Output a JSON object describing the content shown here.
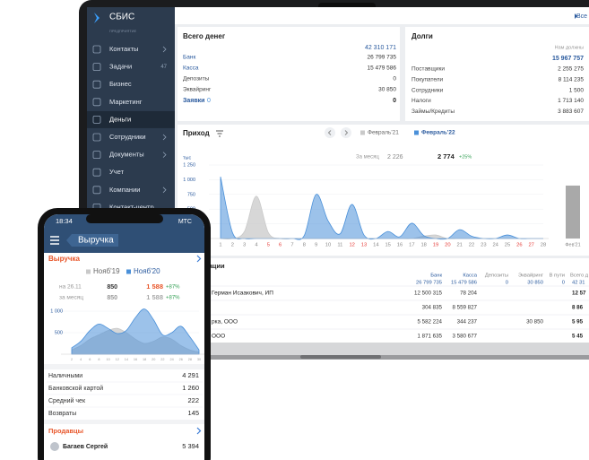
{
  "laptop": {
    "brand": "СБИС",
    "edition": "ПРЕДПРИЯТИЕ",
    "top_link": "Все",
    "menu": [
      {
        "label": "Контакты",
        "arrow": true
      },
      {
        "label": "Задачи",
        "count": "47"
      },
      {
        "label": "Бизнес"
      },
      {
        "label": "Маркетинг"
      },
      {
        "label": "Деньги",
        "active": true
      },
      {
        "label": "Сотрудники",
        "arrow": true
      },
      {
        "label": "Документы",
        "arrow": true
      },
      {
        "label": "Учет"
      },
      {
        "label": "Компании",
        "arrow": true
      },
      {
        "label": "Контакт-центр"
      }
    ],
    "money": {
      "title": "Всего денег",
      "total": "42 310 171",
      "rows": [
        {
          "label": "Банк",
          "value": "26 799 735",
          "link": true
        },
        {
          "label": "Касса",
          "value": "15 479 586",
          "link": true
        },
        {
          "label": "Депозиты",
          "value": "0"
        },
        {
          "label": "Эквайринг",
          "value": "30 850"
        }
      ],
      "requests": {
        "label": "Заявки",
        "count": "0",
        "value": "0"
      }
    },
    "debts": {
      "title": "Долги",
      "subtitle": "Нам должны",
      "total": "15 967 757",
      "rows": [
        {
          "label": "Поставщики",
          "value": "2 255 275"
        },
        {
          "label": "Покупатели",
          "value": "8 114 235"
        },
        {
          "label": "Сотрудники",
          "value": "1 500"
        },
        {
          "label": "Налоги",
          "value": "1 713 140"
        },
        {
          "label": "Займы/Кредиты",
          "value": "3 883 607"
        }
      ]
    },
    "income": {
      "title": "Приход",
      "unit": "тыс",
      "month_label": "За месяц",
      "month_prev": "2 226",
      "month_cur": "2 774",
      "change": "+25%"
    },
    "orgs": {
      "title": "зации",
      "columns": [
        {
          "label": "Банк",
          "total": "26 799 735"
        },
        {
          "label": "Касса",
          "total": "15 479 586"
        },
        {
          "label": "Депозиты",
          "total": "0"
        },
        {
          "label": "Эквайринг",
          "total": "30 850"
        },
        {
          "label": "В пути",
          "total": "0"
        },
        {
          "label": "Всего д",
          "total": "42 31"
        }
      ],
      "rows": [
        {
          "name": "Герман Исаакович, ИП",
          "cells": {
            "0": "12 500 315",
            "1": "78 204",
            "5": "12 57"
          }
        },
        {
          "cells": {
            "0": "304 835",
            "1": "8 559 827",
            "5": "8 86"
          }
        },
        {
          "name": "рка, ООО",
          "cells": {
            "0": "5 582 224",
            "1": "344 237",
            "3": "30 850",
            "5": "5 95"
          }
        },
        {
          "name": "ООО",
          "cells": {
            "0": "1 871 635",
            "1": "3 580 677",
            "5": "5 45"
          }
        }
      ]
    }
  },
  "phone": {
    "time": "18:34",
    "carrier": "МТС",
    "header": "Выручка",
    "section": "Выручка",
    "compare": [
      {
        "label": "на 26.11",
        "prev": "850",
        "cur": "1 588",
        "change": "+87%"
      },
      {
        "label": "за месяц",
        "prev": "850",
        "cur": "1 588",
        "change": "+87%"
      }
    ],
    "list": [
      {
        "label": "Наличными",
        "value": "4 291"
      },
      {
        "label": "Банковской картой",
        "value": "1 260"
      },
      {
        "label": "Средний чек",
        "value": "222"
      },
      {
        "label": "Возвраты",
        "value": "145"
      }
    ],
    "sellers": "Продавцы",
    "seller": {
      "name": "Багаев Сергей",
      "value": "5 394"
    }
  },
  "chart_data": [
    {
      "type": "area",
      "categories": [
        "1",
        "2",
        "3",
        "4",
        "5",
        "6",
        "7",
        "8",
        "9",
        "10",
        "11",
        "12",
        "13",
        "14",
        "15",
        "16",
        "17",
        "18",
        "19",
        "20",
        "21",
        "22",
        "23",
        "24",
        "25",
        "26",
        "27",
        "28"
      ],
      "category_colors": [
        "#888",
        "#888",
        "#888",
        "#888",
        "#e53935",
        "#e53935",
        "#888",
        "#888",
        "#888",
        "#888",
        "#888",
        "#e53935",
        "#e53935",
        "#888",
        "#888",
        "#888",
        "#888",
        "#888",
        "#e53935",
        "#e53935",
        "#888",
        "#888",
        "#888",
        "#888",
        "#888",
        "#e53935",
        "#e53935",
        "#888"
      ],
      "series": [
        {
          "name": "Февраль'21",
          "color": "#c9c9c9",
          "values": [
            0,
            0,
            120,
            720,
            100,
            0,
            0,
            0,
            0,
            0,
            0,
            0,
            0,
            0,
            0,
            0,
            0,
            40,
            60,
            0,
            0,
            0,
            0,
            0,
            0,
            0,
            0,
            0
          ]
        },
        {
          "name": "Февраль'22",
          "color": "#4a90d9",
          "values": [
            1050,
            100,
            0,
            0,
            0,
            0,
            0,
            50,
            750,
            300,
            80,
            580,
            60,
            0,
            120,
            30,
            260,
            50,
            0,
            0,
            150,
            40,
            0,
            0,
            60,
            0,
            0,
            0
          ]
        }
      ],
      "total_bar": {
        "label": "Фев'21",
        "value": 900,
        "color": "#a9a9a9"
      },
      "ylim": [
        0,
        1250
      ],
      "yticks": [
        {
          "value": 1250,
          "label": "1 250"
        },
        {
          "value": 1000,
          "label": "1 000"
        },
        750,
        500,
        250
      ]
    },
    {
      "type": "area",
      "categories": [
        "2",
        "4",
        "6",
        "8",
        "10",
        "12",
        "14",
        "16",
        "18",
        "20",
        "22",
        "24",
        "26",
        "28",
        "30"
      ],
      "series": [
        {
          "name": "Нояб'19",
          "color": "#c9c9c9",
          "values": [
            100,
            200,
            350,
            450,
            550,
            600,
            500,
            350,
            250,
            300,
            400,
            350,
            200,
            100,
            50
          ]
        },
        {
          "name": "Нояб'20",
          "color": "#4a90d9",
          "values": [
            150,
            300,
            550,
            700,
            600,
            480,
            550,
            850,
            1050,
            800,
            450,
            500,
            650,
            400,
            100
          ]
        }
      ],
      "ylim": [
        0,
        1100
      ],
      "yticks": [
        {
          "value": 1000,
          "label": "1 000"
        },
        500
      ]
    }
  ]
}
